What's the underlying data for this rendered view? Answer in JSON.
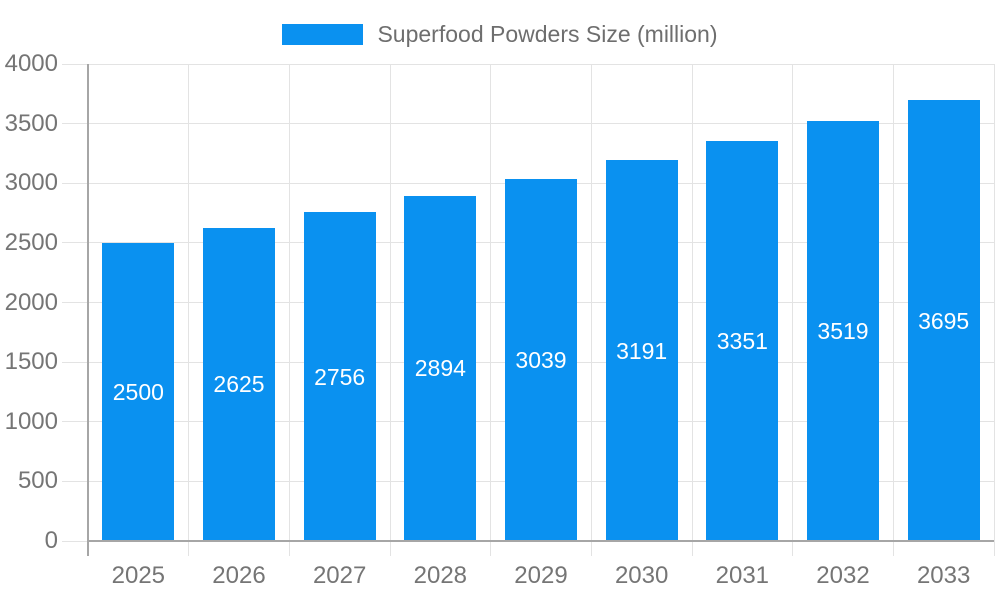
{
  "legend": {
    "label": "Superfood Powders Size (million)"
  },
  "chart_data": {
    "type": "bar",
    "title": "Superfood Powders Size (million)",
    "categories": [
      "2025",
      "2026",
      "2027",
      "2028",
      "2029",
      "2030",
      "2031",
      "2032",
      "2033"
    ],
    "values": [
      2500,
      2625,
      2756,
      2894,
      3039,
      3191,
      3351,
      3519,
      3695
    ],
    "series": [
      {
        "name": "Superfood Powders Size (million)",
        "values": [
          2500,
          2625,
          2756,
          2894,
          3039,
          3191,
          3351,
          3519,
          3695
        ]
      }
    ],
    "xlabel": "",
    "ylabel": "",
    "ylim": [
      0,
      4000
    ],
    "yticks": [
      0,
      500,
      1000,
      1500,
      2000,
      2500,
      3000,
      3500,
      4000
    ],
    "grid": true,
    "legend_position": "top-center",
    "bar_labels_visible": true,
    "bar_label_placement": "center-of-bar",
    "colors": {
      "bar": "#0a91f0",
      "bar_label": "#ffffff",
      "axis_line": "#a6a6a6",
      "grid_line": "#e3e3e3",
      "tick_label": "#757575",
      "legend_text": "#6e6e6e",
      "background": "#ffffff"
    }
  }
}
